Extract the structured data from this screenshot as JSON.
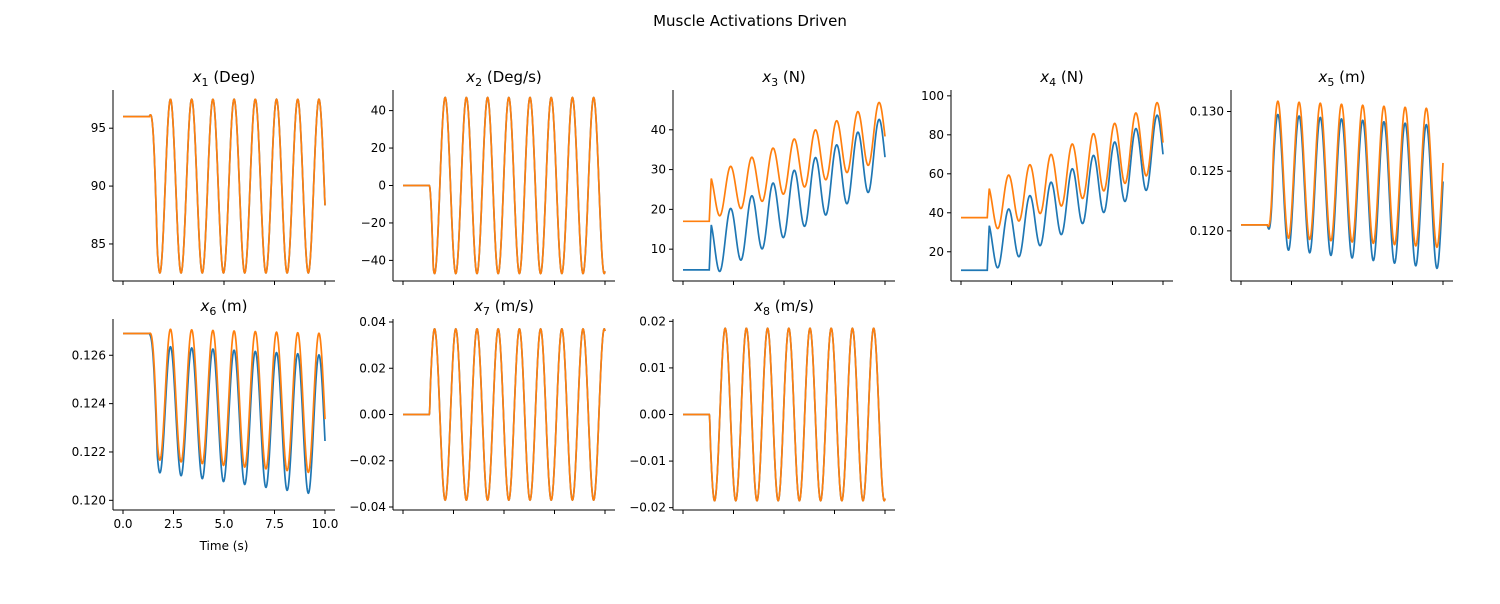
{
  "figure": {
    "title": "Muscle Activations Driven"
  },
  "colors": {
    "series_a": "#1f77b4",
    "series_b": "#ff7f0e"
  },
  "chart_data": [
    {
      "type": "line",
      "title_var": "x",
      "title_sub": "1",
      "title_unit": "(Deg)",
      "xlim": [
        0,
        10
      ],
      "ylim": [
        81.8,
        98.3
      ],
      "yticks": [
        85,
        90,
        95
      ],
      "ytick_labels": [
        "85",
        "90",
        "95"
      ],
      "xticks": [
        0,
        2.5,
        5,
        7.5,
        10
      ],
      "xtick_labels": [],
      "xlabel": "",
      "onset": 1.3,
      "ramp": 0.4,
      "period": 1.05,
      "series": [
        {
          "start": 96.0,
          "center": 90.0,
          "amp_start": 7.5,
          "amp_end": 7.5,
          "phase": 90,
          "offset": 0.0
        },
        {
          "start": 96.0,
          "center": 90.0,
          "amp_start": 7.5,
          "amp_end": 7.5,
          "phase": 90,
          "offset": 0.0
        }
      ]
    },
    {
      "type": "line",
      "title_var": "x",
      "title_sub": "2",
      "title_unit": "(Deg/s)",
      "xlim": [
        0,
        10
      ],
      "ylim": [
        -51,
        51
      ],
      "yticks": [
        -40,
        -20,
        0,
        20,
        40
      ],
      "ytick_labels": [
        "−40",
        "−20",
        "0",
        "20",
        "40"
      ],
      "xticks": [
        0,
        2.5,
        5,
        7.5,
        10
      ],
      "xtick_labels": [],
      "xlabel": "",
      "onset": 1.3,
      "ramp": 0.2,
      "period": 1.05,
      "series": [
        {
          "start": 0,
          "center": 0,
          "amp_start": 47,
          "amp_end": 47,
          "phase": 180,
          "offset": 0.0
        },
        {
          "start": 0,
          "center": 0,
          "amp_start": 47,
          "amp_end": 47,
          "phase": 180,
          "offset": 0.0
        }
      ]
    },
    {
      "type": "line",
      "title_var": "x",
      "title_sub": "3",
      "title_unit": "(N)",
      "xlim": [
        0,
        10
      ],
      "ylim": [
        2,
        50
      ],
      "yticks": [
        10,
        20,
        30,
        40
      ],
      "ytick_labels": [
        "10",
        "20",
        "30",
        "40"
      ],
      "xticks": [
        0,
        2.5,
        5,
        7.5,
        10
      ],
      "xtick_labels": [],
      "xlabel": "",
      "onset": 1.3,
      "ramp": 0.1,
      "period": 1.05,
      "series": [
        {
          "start": 4.8,
          "center_start": 10,
          "center_end": 35,
          "amp_start": 7,
          "amp_end": 8.5,
          "phase": 90,
          "offset": 0.0
        },
        {
          "start": 17.0,
          "center_start": 23,
          "center_end": 40,
          "amp_start": 5.5,
          "amp_end": 7.5,
          "phase": 90,
          "offset": 0.0
        }
      ]
    },
    {
      "type": "line",
      "title_var": "x",
      "title_sub": "4",
      "title_unit": "(N)",
      "xlim": [
        0,
        10
      ],
      "ylim": [
        5,
        103
      ],
      "yticks": [
        20,
        40,
        60,
        80,
        100
      ],
      "ytick_labels": [
        "20",
        "40",
        "60",
        "80",
        "100"
      ],
      "xticks": [
        0,
        2.5,
        5,
        7.5,
        10
      ],
      "xtick_labels": [],
      "xlabel": "",
      "onset": 1.3,
      "ramp": 0.1,
      "period": 1.05,
      "series": [
        {
          "start": 10.5,
          "center_start": 22,
          "center_end": 74,
          "amp_start": 13,
          "amp_end": 18,
          "phase": 90,
          "offset": 0.0
        },
        {
          "start": 37.5,
          "center_start": 42,
          "center_end": 80,
          "amp_start": 12,
          "amp_end": 18,
          "phase": 90,
          "offset": 0.0
        }
      ]
    },
    {
      "type": "line",
      "title_var": "x",
      "title_sub": "5",
      "title_unit": "(m)",
      "xlim": [
        0,
        10
      ],
      "ylim": [
        0.1158,
        0.1318
      ],
      "yticks": [
        0.12,
        0.125,
        0.13
      ],
      "ytick_labels": [
        "0.120",
        "0.125",
        "0.130"
      ],
      "xticks": [
        0,
        2.5,
        5,
        7.5,
        10
      ],
      "xtick_labels": [],
      "xlabel": "",
      "onset": 1.3,
      "ramp": 0.3,
      "period": 1.05,
      "series": [
        {
          "start": 0.1205,
          "center_start": 0.1242,
          "center_end": 0.1228,
          "amp_start": 0.0056,
          "amp_end": 0.006,
          "phase": 270,
          "offset": 0.0
        },
        {
          "start": 0.1205,
          "center_start": 0.1252,
          "center_end": 0.1244,
          "amp_start": 0.0057,
          "amp_end": 0.0058,
          "phase": 270,
          "offset": 0.0
        }
      ]
    },
    {
      "type": "line",
      "title_var": "x",
      "title_sub": "6",
      "title_unit": "(m)",
      "xlim": [
        0,
        10
      ],
      "ylim": [
        0.1196,
        0.1275
      ],
      "yticks": [
        0.12,
        0.122,
        0.124,
        0.126
      ],
      "ytick_labels": [
        "0.120",
        "0.122",
        "0.124",
        "0.126"
      ],
      "xticks": [
        0,
        2.5,
        5,
        7.5,
        10
      ],
      "xtick_labels": [
        "0.0",
        "2.5",
        "5.0",
        "7.5",
        "10.0"
      ],
      "xlabel": "Time (s)",
      "onset": 1.3,
      "ramp": 0.4,
      "period": 1.05,
      "series": [
        {
          "start": 0.1269,
          "center_start": 0.1238,
          "center_end": 0.1231,
          "amp_start": 0.0026,
          "amp_end": 0.0029,
          "phase": 90,
          "offset": 0.0
        },
        {
          "start": 0.1269,
          "center_start": 0.1244,
          "center_end": 0.124,
          "amp_start": 0.0027,
          "amp_end": 0.0029,
          "phase": 90,
          "offset": 0.0
        }
      ]
    },
    {
      "type": "line",
      "title_var": "x",
      "title_sub": "7",
      "title_unit": "(m/s)",
      "xlim": [
        0,
        10
      ],
      "ylim": [
        -0.0413,
        0.0413
      ],
      "yticks": [
        -0.04,
        -0.02,
        0,
        0.02,
        0.04
      ],
      "ytick_labels": [
        "−0.04",
        "−0.02",
        "0.00",
        "0.02",
        "0.04"
      ],
      "xticks": [
        0,
        2.5,
        5,
        7.5,
        10
      ],
      "xtick_labels": [],
      "xlabel": "",
      "onset": 1.3,
      "ramp": 0.05,
      "period": 1.05,
      "series": [
        {
          "start": 0.0,
          "center": 0.0,
          "amp_start": 0.037,
          "amp_end": 0.037,
          "phase": 0,
          "offset": 0.0
        },
        {
          "start": 0.0,
          "center": 0.0,
          "amp_start": 0.037,
          "amp_end": 0.037,
          "phase": 0,
          "offset": 0.0
        }
      ]
    },
    {
      "type": "line",
      "title_var": "x",
      "title_sub": "8",
      "title_unit": "(m/s)",
      "xlim": [
        0,
        10
      ],
      "ylim": [
        -0.0205,
        0.0205
      ],
      "yticks": [
        -0.02,
        -0.01,
        0,
        0.01,
        0.02
      ],
      "ytick_labels": [
        "−0.02",
        "−0.01",
        "0.00",
        "0.01",
        "0.02"
      ],
      "xticks": [
        0,
        2.5,
        5,
        7.5,
        10
      ],
      "xtick_labels": [],
      "xlabel": "",
      "onset": 1.3,
      "ramp": 0.05,
      "period": 1.05,
      "series": [
        {
          "start": 0.0,
          "center": 0.0,
          "amp_start": 0.0185,
          "amp_end": 0.0185,
          "phase": 180,
          "offset": 0.0
        },
        {
          "start": 0.0,
          "center": 0.0,
          "amp_start": 0.0185,
          "amp_end": 0.0185,
          "phase": 180,
          "offset": 0.0
        }
      ]
    }
  ]
}
